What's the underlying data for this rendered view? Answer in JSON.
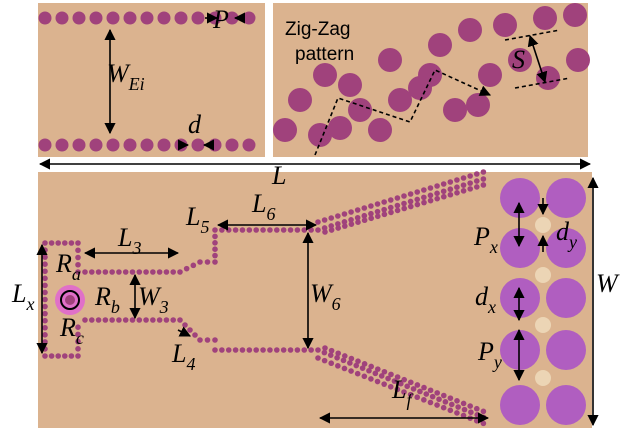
{
  "top_left": {
    "p": {
      "main": "P"
    },
    "w_ei": {
      "main": "W",
      "sub": "Ei"
    },
    "d": {
      "main": "d"
    }
  },
  "top_right": {
    "caption": [
      "Zig-Zag",
      "pattern"
    ],
    "s": {
      "main": "S"
    }
  },
  "main": {
    "l": {
      "main": "L"
    },
    "l5": {
      "main": "L",
      "sub": "5"
    },
    "l6": {
      "main": "L",
      "sub": "6"
    },
    "l3": {
      "main": "L",
      "sub": "3"
    },
    "ra": {
      "main": "R",
      "sub": "a"
    },
    "rb": {
      "main": "R",
      "sub": "b"
    },
    "rc": {
      "main": "R",
      "sub": "c"
    },
    "lx": {
      "main": "L",
      "sub": "x"
    },
    "w3": {
      "main": "W",
      "sub": "3"
    },
    "w6": {
      "main": "W",
      "sub": "6"
    },
    "l4": {
      "main": "L",
      "sub": "4"
    },
    "px": {
      "main": "P",
      "sub": "x"
    },
    "dy": {
      "main": "d",
      "sub": "y"
    },
    "dx": {
      "main": "d",
      "sub": "x"
    },
    "py": {
      "main": "P",
      "sub": "y"
    },
    "w": {
      "main": "W"
    },
    "lf": {
      "main": "L",
      "sub": "f"
    }
  }
}
